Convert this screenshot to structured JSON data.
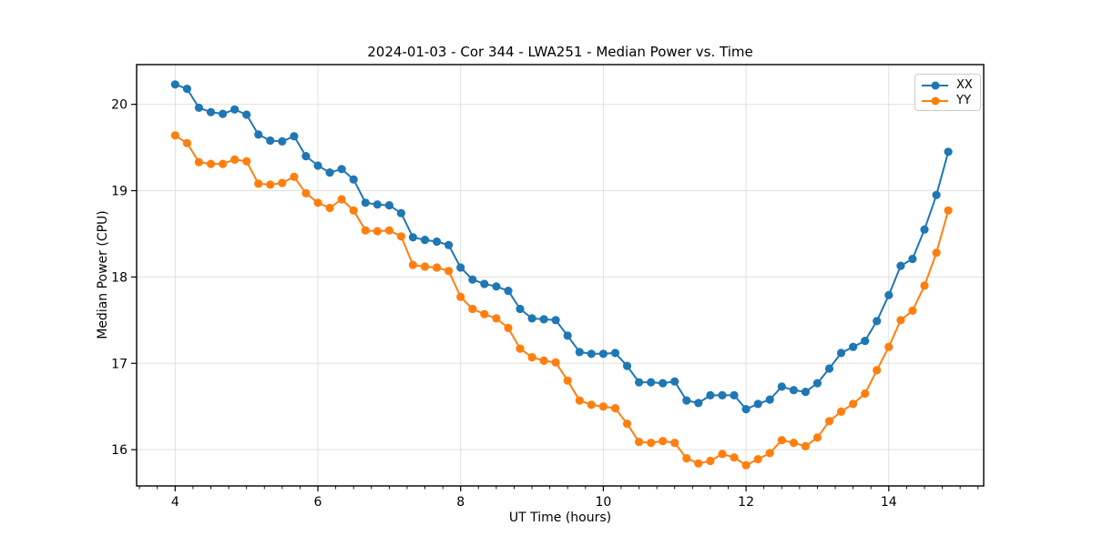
{
  "chart_data": {
    "type": "line",
    "title": "2024-01-03 - Cor 344 - LWA251 - Median Power vs. Time",
    "xlabel": "UT Time (hours)",
    "ylabel": "Median Power (CPU)",
    "xlim": [
      3.46,
      15.33
    ],
    "ylim": [
      15.58,
      20.46
    ],
    "xticks": [
      4,
      6,
      8,
      10,
      12,
      14
    ],
    "yticks": [
      16,
      17,
      18,
      19,
      20
    ],
    "minor_xtick_start": 3.5,
    "minor_xtick_step": 0.25,
    "grid": true,
    "grid_color": "#e0e0e0",
    "spine_color": "#000000",
    "background": "#ffffff",
    "legend_position": "upper right",
    "x": [
      4.0,
      4.167,
      4.333,
      4.5,
      4.667,
      4.833,
      5.0,
      5.167,
      5.333,
      5.5,
      5.667,
      5.833,
      6.0,
      6.167,
      6.333,
      6.5,
      6.667,
      6.833,
      7.0,
      7.167,
      7.333,
      7.5,
      7.667,
      7.833,
      8.0,
      8.167,
      8.333,
      8.5,
      8.667,
      8.833,
      9.0,
      9.167,
      9.333,
      9.5,
      9.667,
      9.833,
      10.0,
      10.167,
      10.333,
      10.5,
      10.667,
      10.833,
      11.0,
      11.167,
      11.333,
      11.5,
      11.667,
      11.833,
      12.0,
      12.167,
      12.333,
      12.5,
      12.667,
      12.833,
      13.0,
      13.167,
      13.333,
      13.5,
      13.667,
      13.833,
      14.0,
      14.167,
      14.333,
      14.5,
      14.667,
      14.833
    ],
    "series": [
      {
        "name": "XX",
        "color": "#1f77b4",
        "values": [
          20.23,
          20.18,
          19.96,
          19.91,
          19.89,
          19.94,
          19.88,
          19.65,
          19.58,
          19.57,
          19.63,
          19.4,
          19.29,
          19.21,
          19.25,
          19.13,
          18.86,
          18.84,
          18.83,
          18.74,
          18.46,
          18.43,
          18.41,
          18.37,
          18.11,
          17.97,
          17.92,
          17.89,
          17.84,
          17.63,
          17.52,
          17.51,
          17.5,
          17.32,
          17.13,
          17.11,
          17.11,
          17.12,
          16.97,
          16.78,
          16.78,
          16.77,
          16.79,
          16.57,
          16.54,
          16.63,
          16.63,
          16.63,
          16.47,
          16.53,
          16.58,
          16.73,
          16.69,
          16.67,
          16.77,
          16.94,
          17.12,
          17.19,
          17.26,
          17.49,
          17.79,
          18.13,
          18.21,
          18.55,
          18.95,
          19.45
        ]
      },
      {
        "name": "YY",
        "color": "#ff7f0e",
        "values": [
          19.64,
          19.55,
          19.33,
          19.31,
          19.31,
          19.36,
          19.34,
          19.08,
          19.07,
          19.09,
          19.16,
          18.97,
          18.86,
          18.8,
          18.9,
          18.77,
          18.54,
          18.53,
          18.54,
          18.47,
          18.14,
          18.12,
          18.11,
          18.07,
          17.77,
          17.63,
          17.57,
          17.52,
          17.41,
          17.17,
          17.07,
          17.03,
          17.01,
          16.8,
          16.57,
          16.52,
          16.5,
          16.48,
          16.3,
          16.09,
          16.08,
          16.1,
          16.08,
          15.9,
          15.84,
          15.87,
          15.95,
          15.91,
          15.82,
          15.89,
          15.96,
          16.11,
          16.08,
          16.04,
          16.14,
          16.33,
          16.44,
          16.53,
          16.65,
          16.92,
          17.19,
          17.5,
          17.61,
          17.9,
          18.28,
          18.77
        ]
      }
    ]
  }
}
